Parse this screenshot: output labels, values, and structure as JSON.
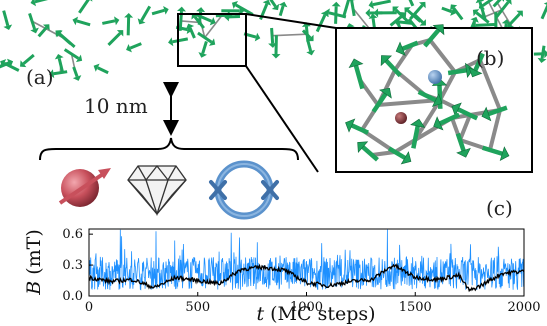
{
  "figure": {
    "panel_labels": {
      "a": "(a)",
      "b": "(b)",
      "c": "(c)"
    },
    "distance_label": "10 nm",
    "sensor_icons": [
      "spin-sphere-icon",
      "diamond-icon",
      "superconducting-ring-icon"
    ]
  },
  "colors": {
    "spin_green": "#1fa35c",
    "bond_gray": "#8a8a8a",
    "spin_sphere": "#c8505c",
    "ring_blue": "#5b92cc",
    "trace_light": "#1e90ff",
    "trace_dark": "#000000"
  },
  "chart_data": {
    "type": "line",
    "xlabel_var": "t",
    "xlabel_rest": " (MC steps)",
    "ylabel_var": "B",
    "ylabel_rest": " (mT)",
    "xlim": [
      0,
      2000
    ],
    "ylim": [
      0,
      0.65
    ],
    "xticks": [
      "0",
      "500",
      "1000",
      "1500",
      "2000"
    ],
    "yticks": [
      "0.0",
      "0.3",
      "0.6"
    ],
    "series": [
      {
        "style": "raw",
        "color": "#1e90ff",
        "mean": 0.22,
        "spread": 0.16,
        "max": 0.65
      },
      {
        "style": "smoothed",
        "color": "#000000",
        "x": [
          0,
          100,
          200,
          300,
          400,
          500,
          600,
          700,
          800,
          900,
          1000,
          1100,
          1200,
          1300,
          1400,
          1500,
          1600,
          1700,
          1750,
          1800,
          1900,
          2000
        ],
        "values": [
          0.18,
          0.14,
          0.16,
          0.08,
          0.18,
          0.15,
          0.12,
          0.26,
          0.28,
          0.25,
          0.13,
          0.1,
          0.14,
          0.16,
          0.3,
          0.18,
          0.16,
          0.2,
          0.05,
          0.1,
          0.22,
          0.24
        ]
      }
    ]
  }
}
